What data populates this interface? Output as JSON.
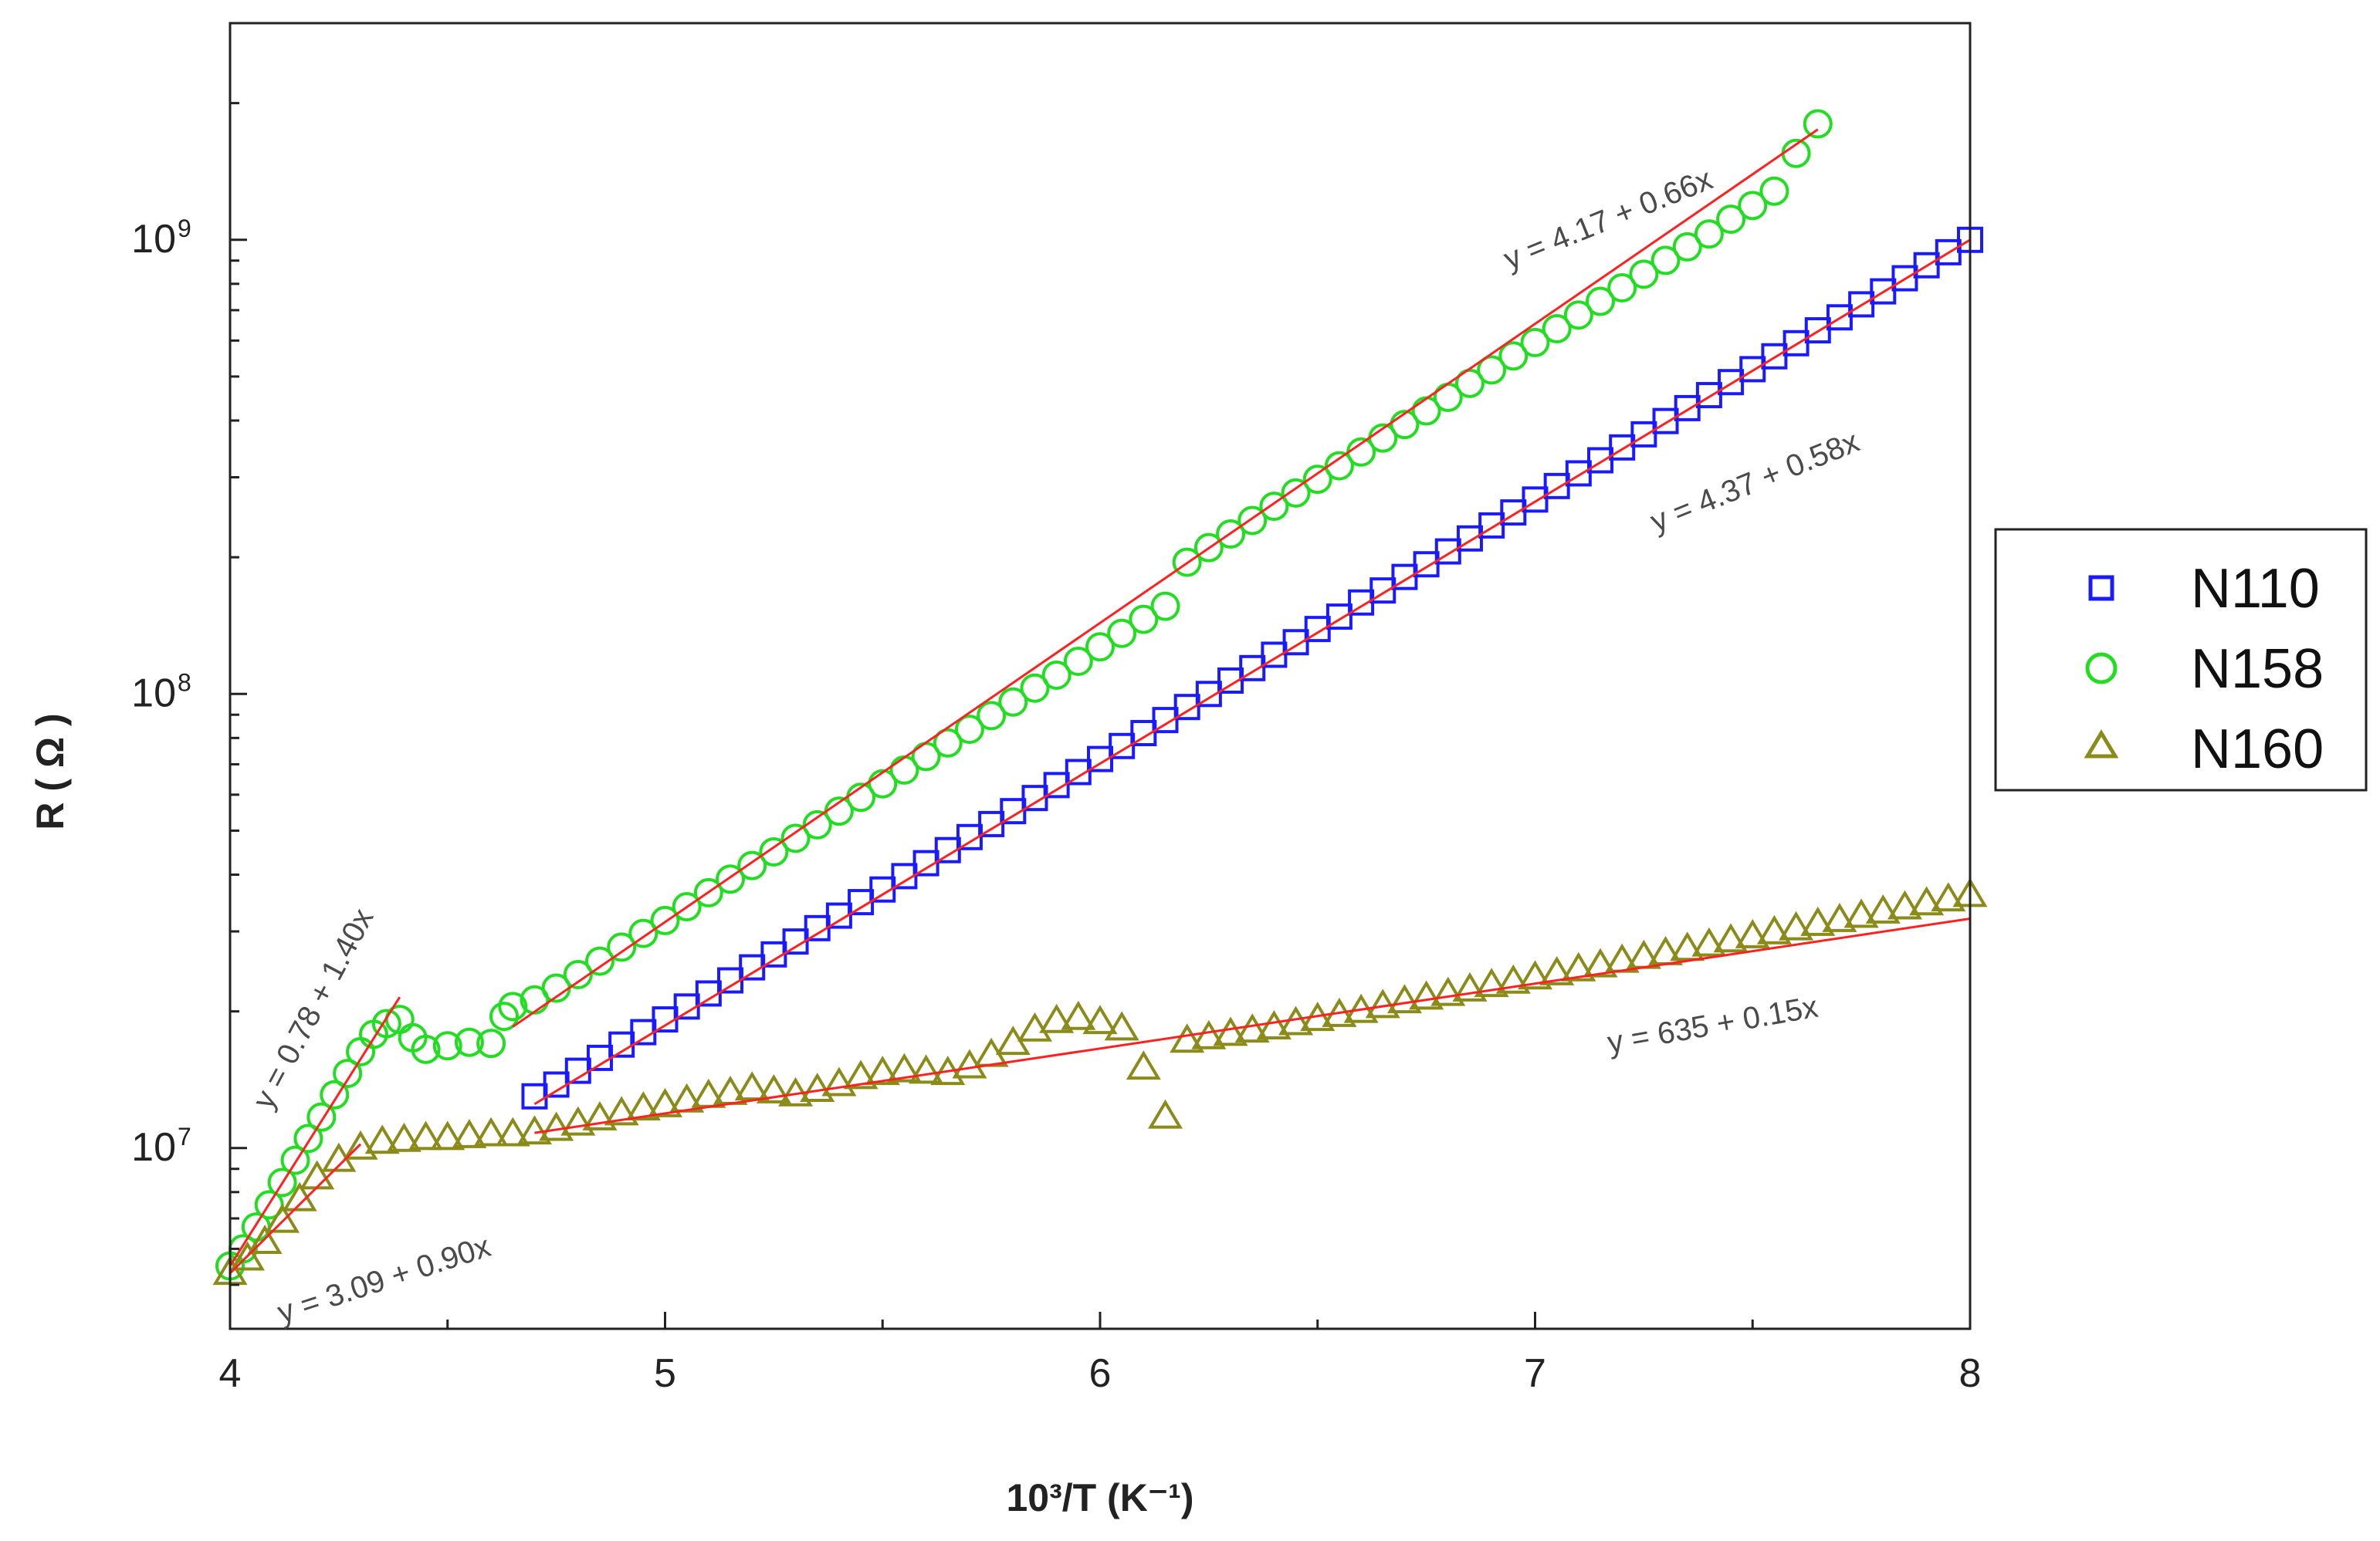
{
  "chart_data": {
    "type": "scatter",
    "title": "",
    "xlabel": "10³/T (K⁻¹)",
    "ylabel": "R ( Ω )",
    "xlim": [
      4,
      8
    ],
    "ylim": [
      4000000,
      3000000000
    ],
    "yscale": "log",
    "grid": false,
    "legend_placement": "right",
    "x_ticks": [
      4,
      5,
      6,
      7,
      8
    ],
    "x_tick_labels": [
      "4",
      "5",
      "6",
      "7",
      "8"
    ],
    "y_ticks": [
      10000000,
      100000000,
      1000000000
    ],
    "y_tick_labels": [
      {
        "base": "10",
        "exp": "7"
      },
      {
        "base": "10",
        "exp": "8"
      },
      {
        "base": "10",
        "exp": "9"
      }
    ],
    "series": [
      {
        "name": "N110",
        "color": "#1a1aff",
        "marker": "square",
        "x": [
          4.7,
          4.75,
          4.8,
          4.85,
          4.9,
          4.95,
          5.0,
          5.05,
          5.1,
          5.15,
          5.2,
          5.25,
          5.3,
          5.35,
          5.4,
          5.45,
          5.5,
          5.55,
          5.6,
          5.65,
          5.7,
          5.75,
          5.8,
          5.85,
          5.9,
          5.95,
          6.0,
          6.05,
          6.1,
          6.15,
          6.2,
          6.25,
          6.3,
          6.35,
          6.4,
          6.45,
          6.5,
          6.55,
          6.6,
          6.65,
          6.7,
          6.75,
          6.8,
          6.85,
          6.9,
          6.95,
          7.0,
          7.05,
          7.1,
          7.15,
          7.2,
          7.25,
          7.3,
          7.35,
          7.4,
          7.45,
          7.5,
          7.55,
          7.6,
          7.65,
          7.7,
          7.75,
          7.8,
          7.85,
          7.9,
          7.95,
          8.0
        ],
        "y": [
          13000000,
          13800000,
          14800000,
          15800000,
          16900000,
          18000000,
          19200000,
          20500000,
          21900000,
          23400000,
          25000000,
          26700000,
          28500000,
          30500000,
          32500000,
          34800000,
          37100000,
          39700000,
          42400000,
          45300000,
          48400000,
          51700000,
          55200000,
          59000000,
          63000000,
          67300000,
          71900000,
          76800000,
          82000000,
          87600000,
          93600000,
          100000000,
          107000000,
          114000000,
          122000000,
          130000000,
          139000000,
          148000000,
          159000000,
          169000000,
          181000000,
          193000000,
          206000000,
          220000000,
          235000000,
          251000000,
          268000000,
          287000000,
          306000000,
          327000000,
          349000000,
          373000000,
          399000000,
          426000000,
          455000000,
          486000000,
          519000000,
          554000000,
          592000000,
          632000000,
          675000000,
          721000000,
          770000000,
          823000000,
          879000000,
          939000000,
          1000000000
        ]
      },
      {
        "name": "N158",
        "color": "#22dd22",
        "marker": "circle",
        "x": [
          4.0,
          4.03,
          4.06,
          4.09,
          4.12,
          4.15,
          4.18,
          4.21,
          4.24,
          4.27,
          4.3,
          4.33,
          4.36,
          4.39,
          4.42,
          4.45,
          4.5,
          4.55,
          4.6,
          4.63,
          4.65,
          4.7,
          4.75,
          4.8,
          4.85,
          4.9,
          4.95,
          5.0,
          5.05,
          5.1,
          5.15,
          5.2,
          5.25,
          5.3,
          5.35,
          5.4,
          5.45,
          5.5,
          5.55,
          5.6,
          5.65,
          5.7,
          5.75,
          5.8,
          5.85,
          5.9,
          5.95,
          6.0,
          6.05,
          6.1,
          6.15,
          6.2,
          6.25,
          6.3,
          6.35,
          6.4,
          6.45,
          6.5,
          6.55,
          6.6,
          6.65,
          6.7,
          6.75,
          6.8,
          6.85,
          6.9,
          6.95,
          7.0,
          7.05,
          7.1,
          7.15,
          7.2,
          7.25,
          7.3,
          7.35,
          7.4,
          7.45,
          7.5,
          7.55,
          7.6,
          7.65
        ],
        "y": [
          5500000,
          6000000,
          6700000,
          7500000,
          8400000,
          9400000,
          10500000,
          11700000,
          13100000,
          14600000,
          16300000,
          17800000,
          18800000,
          19200000,
          17500000,
          16500000,
          16800000,
          17100000,
          17000000,
          19500000,
          20500000,
          21200000,
          22500000,
          24100000,
          25800000,
          27700000,
          29700000,
          31700000,
          34000000,
          36500000,
          39100000,
          41900000,
          44900000,
          48100000,
          51500000,
          55200000,
          59200000,
          63400000,
          68000000,
          72800000,
          78000000,
          83600000,
          89600000,
          96000000,
          103000000,
          110000000,
          118000000,
          127000000,
          136000000,
          146000000,
          156000000,
          195000000,
          210000000,
          225000000,
          241000000,
          259000000,
          277000000,
          297000000,
          318000000,
          341000000,
          366000000,
          392000000,
          420000000,
          450000000,
          483000000,
          517000000,
          555000000,
          594000000,
          637000000,
          683000000,
          732000000,
          784000000,
          840000000,
          901000000,
          965000000,
          1030000000,
          1110000000,
          1190000000,
          1280000000,
          1550000000,
          1800000000
        ]
      },
      {
        "name": "N160",
        "color": "#8b8b1a",
        "marker": "triangle",
        "x": [
          4.0,
          4.04,
          4.08,
          4.12,
          4.16,
          4.2,
          4.25,
          4.3,
          4.35,
          4.4,
          4.45,
          4.5,
          4.55,
          4.6,
          4.65,
          4.7,
          4.75,
          4.8,
          4.85,
          4.9,
          4.95,
          5.0,
          5.05,
          5.1,
          5.15,
          5.2,
          5.25,
          5.3,
          5.35,
          5.4,
          5.45,
          5.5,
          5.55,
          5.6,
          5.65,
          5.7,
          5.75,
          5.8,
          5.85,
          5.9,
          5.95,
          6.0,
          6.05,
          6.1,
          6.15,
          6.2,
          6.25,
          6.3,
          6.35,
          6.4,
          6.45,
          6.5,
          6.55,
          6.6,
          6.65,
          6.7,
          6.75,
          6.8,
          6.85,
          6.9,
          6.95,
          7.0,
          7.05,
          7.1,
          7.15,
          7.2,
          7.25,
          7.3,
          7.35,
          7.4,
          7.45,
          7.5,
          7.55,
          7.6,
          7.65,
          7.7,
          7.75,
          7.8,
          7.85,
          7.9,
          7.95,
          8.0
        ],
        "y": [
          5300000,
          5700000,
          6200000,
          6900000,
          7700000,
          8600000,
          9400000,
          10000000,
          10300000,
          10400000,
          10500000,
          10500000,
          10600000,
          10700000,
          10700000,
          10800000,
          11000000,
          11300000,
          11600000,
          11900000,
          12200000,
          12400000,
          12700000,
          13000000,
          13200000,
          13500000,
          13300000,
          13100000,
          13400000,
          13800000,
          14300000,
          14600000,
          14800000,
          14700000,
          14600000,
          15100000,
          16000000,
          17000000,
          18200000,
          19000000,
          19300000,
          18900000,
          18300000,
          15000000,
          11700000,
          17200000,
          17500000,
          17800000,
          18100000,
          18400000,
          18800000,
          19200000,
          19600000,
          20000000,
          20500000,
          21000000,
          21400000,
          21800000,
          22300000,
          22800000,
          23200000,
          23700000,
          24200000,
          24700000,
          25200000,
          25800000,
          26300000,
          26800000,
          27400000,
          28000000,
          28600000,
          29200000,
          29800000,
          30400000,
          31100000,
          31700000,
          32400000,
          33100000,
          33800000,
          34500000,
          35200000,
          36000000
        ]
      }
    ],
    "fits": [
      {
        "label": "y = 0.78 + 1.40x",
        "x": [
          4.0,
          4.39
        ],
        "y": [
          5500000,
          21500000
        ]
      },
      {
        "label": "y = 4.17 + 0.66x",
        "x": [
          4.65,
          7.65
        ],
        "y": [
          18500000,
          1750000000
        ]
      },
      {
        "label": "y = 4.37 + 0.58x",
        "x": [
          4.7,
          8.0
        ],
        "y": [
          12500000,
          1000000000
        ]
      },
      {
        "label": "y = 635 + 0.15x",
        "x": [
          4.7,
          8.0
        ],
        "y": [
          10800000,
          32000000
        ]
      },
      {
        "label": "y = 3.09 + 0.90x",
        "x": [
          4.0,
          4.3
        ],
        "y": [
          5300000,
          10200000
        ]
      }
    ],
    "fit_color": "#ff2020"
  }
}
